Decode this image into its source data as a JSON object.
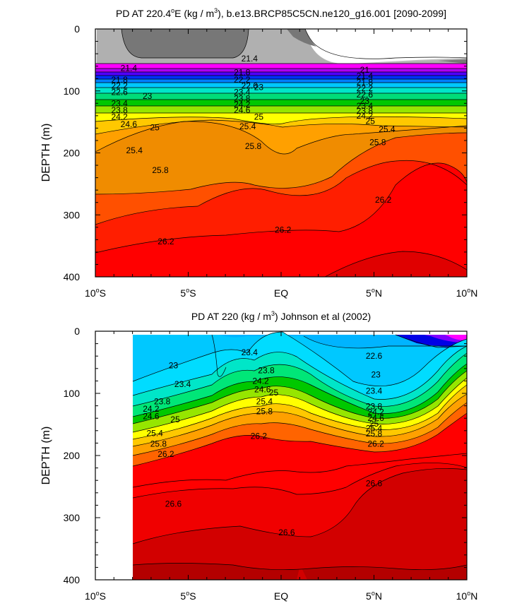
{
  "chart_data": [
    {
      "type": "contour",
      "title_prefix": "PD AT 220.4",
      "title_deg": "o",
      "title_mid": "E (kg / m",
      "title_sup": "3",
      "title_suffix": "), b.e13.BRCP85C5CN.ne120_g16.001 [2090-2099]",
      "ylabel": "DEPTH (m)",
      "xlim": [
        -10,
        10
      ],
      "ylim": [
        400,
        0
      ],
      "yticks": [
        "0",
        "100",
        "200",
        "300",
        "400"
      ],
      "xticks": [
        {
          "num": "10",
          "deg": "o",
          "hem": "S"
        },
        {
          "num": "5",
          "deg": "o",
          "hem": "S"
        },
        {
          "num": "EQ",
          "deg": "",
          "hem": ""
        },
        {
          "num": "5",
          "deg": "o",
          "hem": "N"
        },
        {
          "num": "10",
          "deg": "o",
          "hem": "N"
        }
      ],
      "contour_labels": [
        {
          "text": "21.4",
          "lat": -8.2,
          "depth": 63
        },
        {
          "text": "21.8",
          "lat": -8.7,
          "depth": 82
        },
        {
          "text": "22.2",
          "lat": -8.7,
          "depth": 92
        },
        {
          "text": "22.6",
          "lat": -8.7,
          "depth": 102
        },
        {
          "text": "23",
          "lat": -7.2,
          "depth": 108
        },
        {
          "text": "23.4",
          "lat": -8.7,
          "depth": 120
        },
        {
          "text": "23.8",
          "lat": -8.7,
          "depth": 131
        },
        {
          "text": "24.2",
          "lat": -8.7,
          "depth": 142
        },
        {
          "text": "24.6",
          "lat": -8.2,
          "depth": 154
        },
        {
          "text": "25",
          "lat": -6.8,
          "depth": 159
        },
        {
          "text": "25.4",
          "lat": -7.9,
          "depth": 196
        },
        {
          "text": "25.8",
          "lat": -6.5,
          "depth": 228
        },
        {
          "text": "26.2",
          "lat": -6.2,
          "depth": 343
        },
        {
          "text": "21.4",
          "lat": -1.7,
          "depth": 48
        },
        {
          "text": "21.8",
          "lat": -2.1,
          "depth": 70
        },
        {
          "text": "22.2",
          "lat": -2.1,
          "depth": 82
        },
        {
          "text": "22.6",
          "lat": -1.7,
          "depth": 92
        },
        {
          "text": "23",
          "lat": -1.2,
          "depth": 94
        },
        {
          "text": "23.4",
          "lat": -2.1,
          "depth": 102
        },
        {
          "text": "23.8",
          "lat": -2.1,
          "depth": 112
        },
        {
          "text": "24.2",
          "lat": -2.1,
          "depth": 122
        },
        {
          "text": "24.6",
          "lat": -2.1,
          "depth": 131
        },
        {
          "text": "25",
          "lat": -1.2,
          "depth": 142
        },
        {
          "text": "25.4",
          "lat": -1.8,
          "depth": 157
        },
        {
          "text": "25.8",
          "lat": -1.5,
          "depth": 189
        },
        {
          "text": "26.2",
          "lat": 0.1,
          "depth": 324
        },
        {
          "text": "21",
          "lat": 4.5,
          "depth": 66
        },
        {
          "text": "21.4",
          "lat": 4.5,
          "depth": 76
        },
        {
          "text": "21.8",
          "lat": 4.5,
          "depth": 86
        },
        {
          "text": "22.2",
          "lat": 4.5,
          "depth": 96
        },
        {
          "text": "22.6",
          "lat": 4.5,
          "depth": 106
        },
        {
          "text": "23",
          "lat": 4.5,
          "depth": 116
        },
        {
          "text": "23.4",
          "lat": 4.5,
          "depth": 124
        },
        {
          "text": "23.8",
          "lat": 4.5,
          "depth": 132
        },
        {
          "text": "24.2",
          "lat": 4.5,
          "depth": 140
        },
        {
          "text": "25",
          "lat": 4.8,
          "depth": 149
        },
        {
          "text": "25.4",
          "lat": 5.7,
          "depth": 162
        },
        {
          "text": "25.8",
          "lat": 5.2,
          "depth": 183
        },
        {
          "text": "26.2",
          "lat": 5.5,
          "depth": 276
        }
      ]
    },
    {
      "type": "contour",
      "title": "PD AT 220 (kg / m",
      "title_sup": "3",
      "title_suffix": ") Johnson et al (2002)",
      "ylabel": "DEPTH (m)",
      "xlim": [
        -10,
        10
      ],
      "ylim": [
        400,
        0
      ],
      "yticks": [
        "0",
        "100",
        "200",
        "300",
        "400"
      ],
      "xticks": [
        {
          "num": "10",
          "deg": "o",
          "hem": "S"
        },
        {
          "num": "5",
          "deg": "o",
          "hem": "S"
        },
        {
          "num": "EQ",
          "deg": "",
          "hem": ""
        },
        {
          "num": "5",
          "deg": "o",
          "hem": "N"
        },
        {
          "num": "10",
          "deg": "o",
          "hem": "N"
        }
      ],
      "contour_labels": [
        {
          "text": "23",
          "lat": -5.8,
          "depth": 55
        },
        {
          "text": "23.4",
          "lat": -5.3,
          "depth": 85
        },
        {
          "text": "23.8",
          "lat": -6.4,
          "depth": 113
        },
        {
          "text": "24.2",
          "lat": -7.0,
          "depth": 125
        },
        {
          "text": "24.6",
          "lat": -7.0,
          "depth": 137
        },
        {
          "text": "25",
          "lat": -5.7,
          "depth": 142
        },
        {
          "text": "25.4",
          "lat": -6.8,
          "depth": 164
        },
        {
          "text": "25.8",
          "lat": -6.6,
          "depth": 181
        },
        {
          "text": "26.2",
          "lat": -6.2,
          "depth": 198
        },
        {
          "text": "26.6",
          "lat": -5.8,
          "depth": 278
        },
        {
          "text": "23.4",
          "lat": -1.7,
          "depth": 34
        },
        {
          "text": "23.8",
          "lat": -0.8,
          "depth": 63
        },
        {
          "text": "24.2",
          "lat": -1.1,
          "depth": 80
        },
        {
          "text": "24.6",
          "lat": -1.0,
          "depth": 94
        },
        {
          "text": "25",
          "lat": -0.4,
          "depth": 99
        },
        {
          "text": "25.4",
          "lat": -0.9,
          "depth": 113
        },
        {
          "text": "25.8",
          "lat": -0.9,
          "depth": 129
        },
        {
          "text": "26.2",
          "lat": -1.2,
          "depth": 169
        },
        {
          "text": "26.6",
          "lat": 0.3,
          "depth": 324
        },
        {
          "text": "22.6",
          "lat": 5.0,
          "depth": 40
        },
        {
          "text": "23",
          "lat": 5.1,
          "depth": 70
        },
        {
          "text": "23.4",
          "lat": 5.0,
          "depth": 96
        },
        {
          "text": "23.8",
          "lat": 5.0,
          "depth": 121
        },
        {
          "text": "24.2",
          "lat": 5.1,
          "depth": 130
        },
        {
          "text": "24.6",
          "lat": 5.1,
          "depth": 140
        },
        {
          "text": "25",
          "lat": 5.0,
          "depth": 149
        },
        {
          "text": "25.4",
          "lat": 5.0,
          "depth": 156
        },
        {
          "text": "25.8",
          "lat": 5.0,
          "depth": 165
        },
        {
          "text": "26.2",
          "lat": 5.1,
          "depth": 181
        },
        {
          "text": "26.6",
          "lat": 5.0,
          "depth": 245
        }
      ]
    }
  ]
}
